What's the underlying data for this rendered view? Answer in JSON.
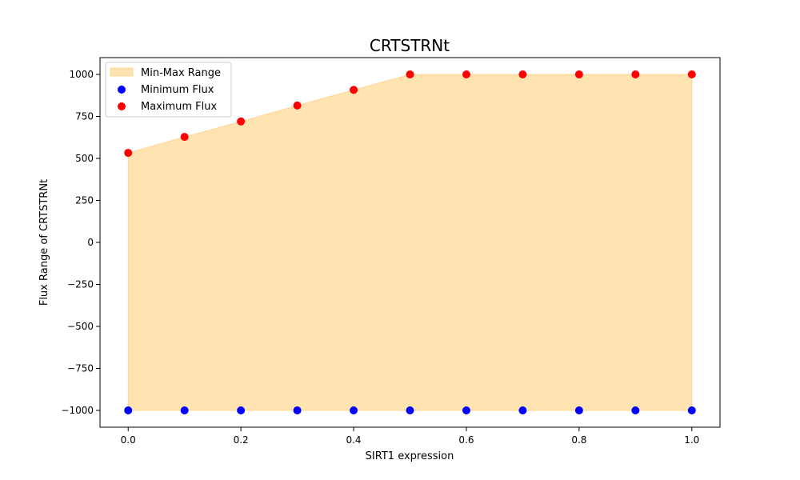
{
  "chart_data": {
    "type": "scatter",
    "title": "CRTSTRNt",
    "xlabel": "SIRT1 expression",
    "ylabel": "Flux Range of CRTSTRNt",
    "xlim": [
      -0.05,
      1.05
    ],
    "ylim": [
      -1100,
      1100
    ],
    "x_ticks": [
      0.0,
      0.2,
      0.4,
      0.6,
      0.8,
      1.0
    ],
    "x_tick_labels": [
      "0.0",
      "0.2",
      "0.4",
      "0.6",
      "0.8",
      "1.0"
    ],
    "y_ticks": [
      -1000,
      -750,
      -500,
      -250,
      0,
      250,
      500,
      750,
      1000
    ],
    "y_tick_labels": [
      "−1000",
      "−750",
      "−500",
      "−250",
      "0",
      "250",
      "500",
      "750",
      "1000"
    ],
    "x": [
      0.0,
      0.1,
      0.2,
      0.3,
      0.4,
      0.5,
      0.6,
      0.7,
      0.8,
      0.9,
      1.0
    ],
    "series": [
      {
        "name": "Minimum Flux",
        "color": "#0000ff",
        "values": [
          -1000,
          -1000,
          -1000,
          -1000,
          -1000,
          -1000,
          -1000,
          -1000,
          -1000,
          -1000,
          -1000
        ]
      },
      {
        "name": "Maximum Flux",
        "color": "#ff0000",
        "values": [
          533,
          628,
          720,
          815,
          908,
          1000,
          1000,
          1000,
          1000,
          1000,
          1000
        ]
      }
    ],
    "fill": {
      "name": "Min-Max Range",
      "color": "#ffa500",
      "alpha": 0.3
    },
    "legend_position": "upper-left",
    "grid": false
  }
}
